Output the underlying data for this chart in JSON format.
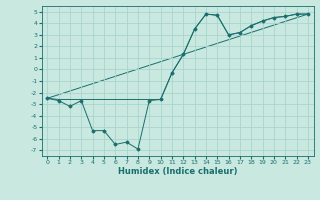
{
  "xlabel": "Humidex (Indice chaleur)",
  "bg_color": "#c8e8e0",
  "grid_color": "#a8d4cc",
  "line_color": "#1a6e6e",
  "xlim": [
    -0.5,
    23.5
  ],
  "ylim": [
    -7.5,
    5.5
  ],
  "xticks": [
    0,
    1,
    2,
    3,
    4,
    5,
    6,
    7,
    8,
    9,
    10,
    11,
    12,
    13,
    14,
    15,
    16,
    17,
    18,
    19,
    20,
    21,
    22,
    23
  ],
  "yticks": [
    -7,
    -6,
    -5,
    -4,
    -3,
    -2,
    -1,
    0,
    1,
    2,
    3,
    4,
    5
  ],
  "line1_x": [
    0,
    1,
    2,
    3,
    4,
    5,
    6,
    7,
    8,
    9,
    10,
    11,
    12,
    13,
    14,
    15,
    16,
    17,
    18,
    19,
    20,
    21,
    22,
    23
  ],
  "line1_y": [
    -2.5,
    -2.7,
    -3.2,
    -2.7,
    -5.3,
    -5.3,
    -6.5,
    -6.3,
    -6.9,
    -2.7,
    -2.6,
    -0.3,
    1.3,
    3.5,
    4.8,
    4.7,
    3.0,
    3.2,
    3.8,
    4.2,
    4.5,
    4.6,
    4.8,
    4.8
  ],
  "line2_x": [
    0,
    1,
    2,
    3,
    4,
    5,
    6,
    7,
    8,
    9,
    10,
    11,
    12,
    13,
    14,
    15,
    16,
    17,
    18,
    19,
    20,
    21,
    22,
    23
  ],
  "line2_y": [
    -2.5,
    -2.6,
    -2.6,
    -2.6,
    -2.6,
    -2.6,
    -2.6,
    -2.6,
    -2.6,
    -2.6,
    -2.6,
    -0.3,
    1.3,
    3.5,
    4.8,
    4.7,
    3.0,
    3.2,
    3.8,
    4.2,
    4.5,
    4.6,
    4.8,
    4.8
  ],
  "line3_x": [
    0,
    23
  ],
  "line3_y": [
    -2.5,
    4.8
  ]
}
